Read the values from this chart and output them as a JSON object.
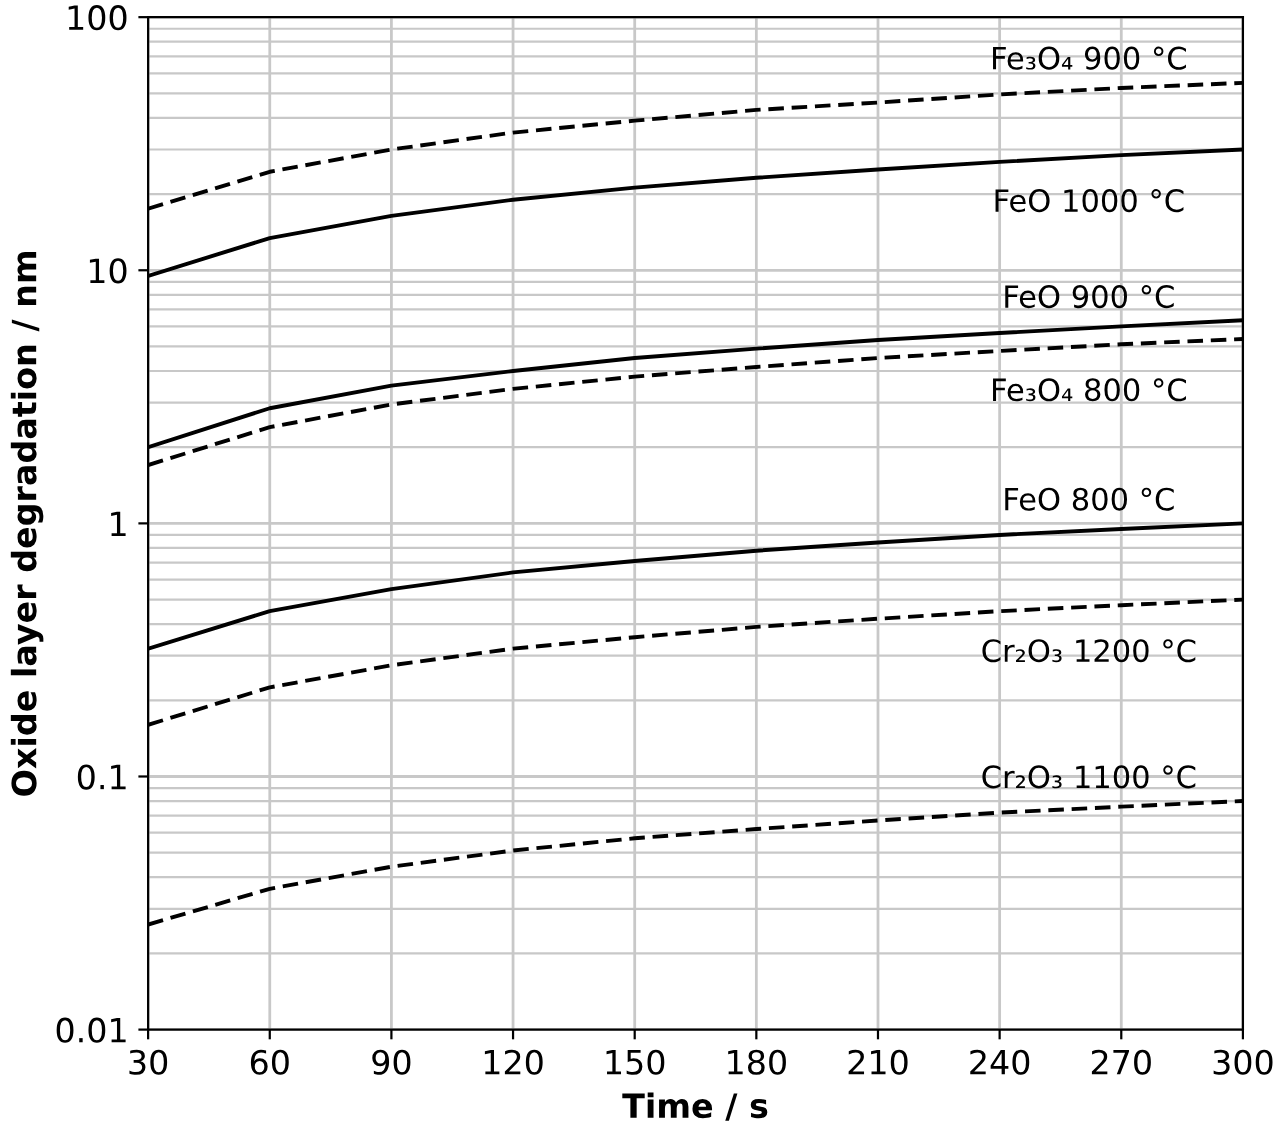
{
  "chart_data": {
    "type": "line",
    "xlabel": "Time / s",
    "ylabel": "Oxide layer degradation / nm",
    "log": "y",
    "x": [
      30,
      60,
      90,
      120,
      150,
      180,
      210,
      240,
      270,
      300
    ],
    "xlim": [
      30,
      300
    ],
    "xticks": [
      30,
      60,
      90,
      120,
      150,
      180,
      210,
      240,
      270,
      300
    ],
    "ylim": [
      0.01,
      100
    ],
    "yticks": [
      0.01,
      0.1,
      1,
      10,
      100
    ],
    "grid": true,
    "legend": false,
    "series": [
      {
        "name": "Fe₃O₄ 900 °C",
        "color": "#000000",
        "line_style": "dashed",
        "values": [
          17.5,
          24.5,
          30,
          35,
          39,
          43,
          46,
          49.5,
          52.5,
          55
        ]
      },
      {
        "name": "FeO 1000 °C",
        "color": "#000000",
        "line_style": "solid",
        "values": [
          9.5,
          13.4,
          16.4,
          19,
          21.2,
          23.2,
          25,
          26.8,
          28.5,
          30
        ]
      },
      {
        "name": "FeO 900 °C",
        "color": "#000000",
        "line_style": "solid",
        "values": [
          2.0,
          2.85,
          3.5,
          4.0,
          4.5,
          4.9,
          5.3,
          5.65,
          6.0,
          6.35
        ]
      },
      {
        "name": "Fe₃O₄ 800 °C",
        "color": "#000000",
        "line_style": "dashed",
        "values": [
          1.7,
          2.4,
          2.95,
          3.4,
          3.8,
          4.15,
          4.5,
          4.8,
          5.1,
          5.35
        ]
      },
      {
        "name": "FeO 800 °C",
        "color": "#000000",
        "line_style": "solid",
        "values": [
          0.32,
          0.45,
          0.55,
          0.64,
          0.71,
          0.78,
          0.84,
          0.9,
          0.95,
          1.0
        ]
      },
      {
        "name": "Cr₂O₃ 1200 °C",
        "color": "#000000",
        "line_style": "dashed",
        "values": [
          0.16,
          0.225,
          0.275,
          0.32,
          0.355,
          0.39,
          0.42,
          0.45,
          0.475,
          0.5
        ]
      },
      {
        "name": "Cr₂O₃ 1100 °C",
        "color": "#000000",
        "line_style": "dashed",
        "values": [
          0.026,
          0.036,
          0.044,
          0.051,
          0.057,
          0.062,
          0.067,
          0.072,
          0.076,
          0.08
        ]
      }
    ]
  }
}
